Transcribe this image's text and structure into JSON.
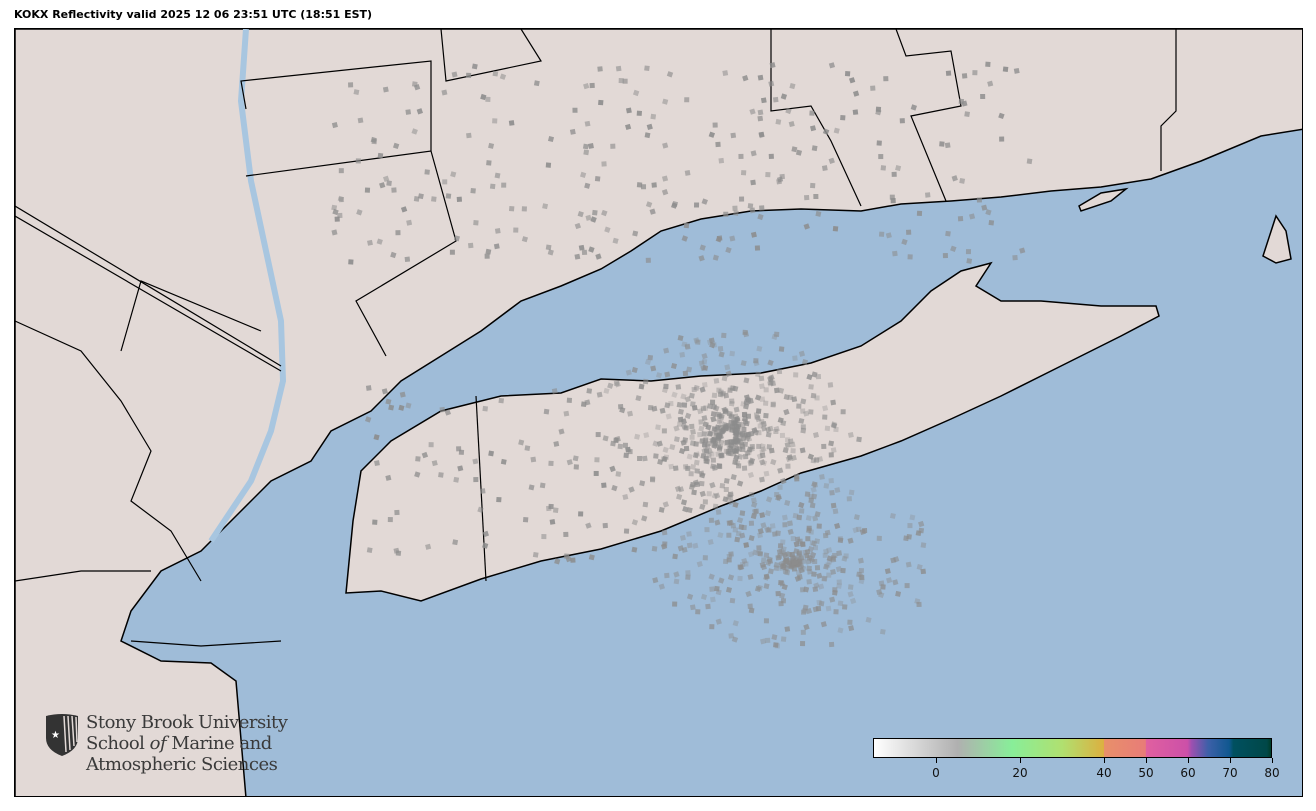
{
  "title": "KOKX Reflectivity valid 2025 12 06 23:51 UTC (18:51 EST)",
  "colors": {
    "ocean": "#9fbcd8",
    "land": "#e2d9d6",
    "water_body": "#a8c6e0",
    "border": "#000000",
    "echo_gray": "#8c8c8c"
  },
  "logo": {
    "line1": "Stony Brook University",
    "line2_a": "School ",
    "line2_b": "of",
    "line2_c": " Marine and",
    "line3": "Atmospheric Sciences"
  },
  "colorbar": {
    "range": [
      -15,
      80
    ],
    "ticks": [
      "0",
      "20",
      "40",
      "50",
      "60",
      "70",
      "80"
    ],
    "tick_values": [
      0,
      20,
      40,
      50,
      60,
      70,
      80
    ],
    "stops": [
      {
        "value": -15,
        "color": "#ffffff"
      },
      {
        "value": 5,
        "color": "#b0b0b0"
      },
      {
        "value": 18,
        "color": "#88ee99"
      },
      {
        "value": 30,
        "color": "#b0e070"
      },
      {
        "value": 40,
        "color": "#dcb040"
      },
      {
        "value": 40.1,
        "color": "#e8906a"
      },
      {
        "value": 50,
        "color": "#e87c78"
      },
      {
        "value": 50.1,
        "color": "#e060a0"
      },
      {
        "value": 60,
        "color": "#cc50a8"
      },
      {
        "value": 61,
        "color": "#9c50b0"
      },
      {
        "value": 65,
        "color": "#3c60a8"
      },
      {
        "value": 70,
        "color": "#105890"
      },
      {
        "value": 71,
        "color": "#005060"
      },
      {
        "value": 79,
        "color": "#004848"
      },
      {
        "value": 80,
        "color": "#003c28"
      }
    ]
  }
}
